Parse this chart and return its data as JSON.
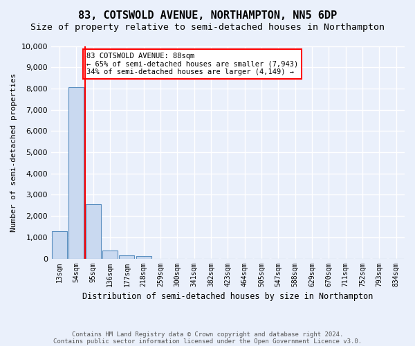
{
  "title": "83, COTSWOLD AVENUE, NORTHAMPTON, NN5 6DP",
  "subtitle": "Size of property relative to semi-detached houses in Northampton",
  "xlabel": "Distribution of semi-detached houses by size in Northampton",
  "ylabel": "Number of semi-detached properties",
  "bar_color": "#c9d9f0",
  "bar_edge_color": "#5a8fc0",
  "property_line_color": "red",
  "annotation_line1": "83 COTSWOLD AVENUE: 88sqm",
  "annotation_line2": "← 65% of semi-detached houses are smaller (7,943)",
  "annotation_line3": "34% of semi-detached houses are larger (4,149) →",
  "footnote1": "Contains HM Land Registry data © Crown copyright and database right 2024.",
  "footnote2": "Contains public sector information licensed under the Open Government Licence v3.0.",
  "bin_labels": [
    "13sqm",
    "54sqm",
    "95sqm",
    "136sqm",
    "177sqm",
    "218sqm",
    "259sqm",
    "300sqm",
    "341sqm",
    "382sqm",
    "423sqm",
    "464sqm",
    "505sqm",
    "547sqm",
    "588sqm",
    "629sqm",
    "670sqm",
    "711sqm",
    "752sqm",
    "793sqm",
    "834sqm"
  ],
  "bin_values": [
    1300,
    8050,
    2550,
    390,
    150,
    120,
    0,
    0,
    0,
    0,
    0,
    0,
    0,
    0,
    0,
    0,
    0,
    0,
    0,
    0,
    0
  ],
  "ylim": [
    0,
    10000
  ],
  "yticks": [
    0,
    1000,
    2000,
    3000,
    4000,
    5000,
    6000,
    7000,
    8000,
    9000,
    10000
  ],
  "background_color": "#eaf0fb",
  "grid_color": "white",
  "annotation_box_color": "white",
  "annotation_box_edge": "red",
  "title_fontsize": 11,
  "subtitle_fontsize": 9.5,
  "red_line_x": 1.5
}
